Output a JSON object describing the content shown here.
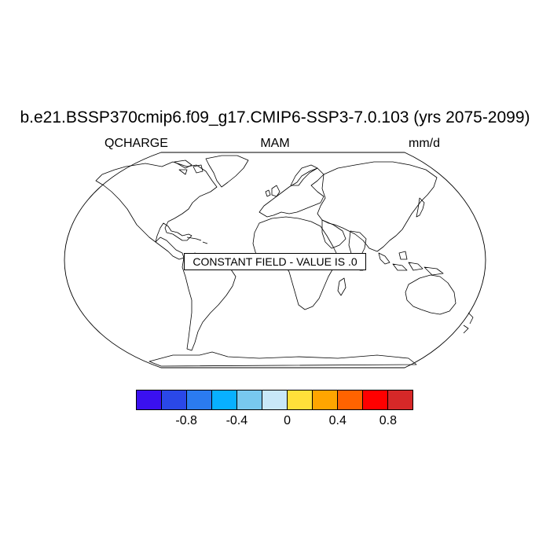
{
  "title": "b.e21.BSSP370cmip6.f09_g17.CMIP6-SSP3-7.0.103 (yrs 2075-2099)",
  "left_label": "QCHARGE",
  "center_label": "MAM",
  "right_label": "mm/d",
  "notice": "CONSTANT FIELD - VALUE IS .0",
  "colorbar": {
    "colors": [
      "#3a10f0",
      "#2a48e8",
      "#2b7bf0",
      "#08b0ff",
      "#78c8ee",
      "#c8e8f8",
      "#ffe03a",
      "#ffa500",
      "#ff6300",
      "#ff0000",
      "#d62828"
    ],
    "tick_labels": [
      "-0.8",
      "-0.4",
      "0",
      "0.4",
      "0.8"
    ],
    "tick_boundary_index": [
      2,
      4,
      6,
      8,
      10
    ]
  }
}
